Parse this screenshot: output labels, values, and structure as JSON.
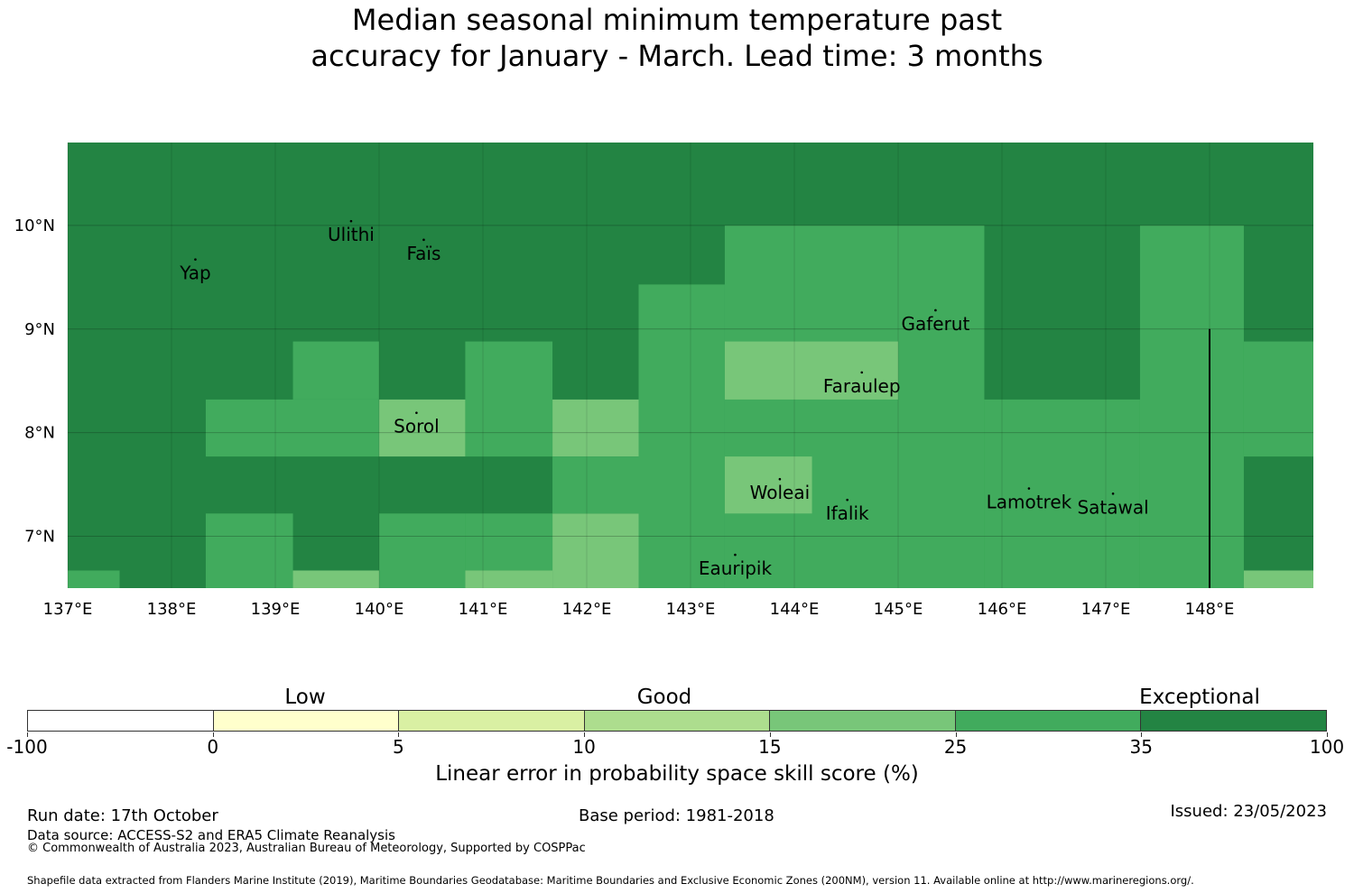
{
  "title": {
    "line1": "Median seasonal minimum temperature past",
    "line2": "accuracy for January - March. Lead time: 3 months"
  },
  "map": {
    "lon_range": [
      137,
      149
    ],
    "lat_range": [
      6.5,
      10.8
    ],
    "x_ticks": [
      {
        "value": 137,
        "label": "137°E"
      },
      {
        "value": 138,
        "label": "138°E"
      },
      {
        "value": 139,
        "label": "139°E"
      },
      {
        "value": 140,
        "label": "140°E"
      },
      {
        "value": 141,
        "label": "141°E"
      },
      {
        "value": 142,
        "label": "142°E"
      },
      {
        "value": 143,
        "label": "143°E"
      },
      {
        "value": 144,
        "label": "144°E"
      },
      {
        "value": 145,
        "label": "145°E"
      },
      {
        "value": 146,
        "label": "146°E"
      },
      {
        "value": 147,
        "label": "147°E"
      },
      {
        "value": 148,
        "label": "148°E"
      }
    ],
    "y_ticks": [
      {
        "value": 7,
        "label": "7°N"
      },
      {
        "value": 8,
        "label": "8°N"
      },
      {
        "value": 9,
        "label": "9°N"
      },
      {
        "value": 10,
        "label": "10°N"
      }
    ],
    "cells": [
      {
        "lon0": 137,
        "lon1": 149,
        "lat0": 6.5,
        "lat1": 10.8,
        "cat": "dark"
      },
      {
        "lon0": 145,
        "lon1": 145.83,
        "lat0": 6.5,
        "lat1": 10.0,
        "cat": "mid"
      },
      {
        "lon0": 143.33,
        "lon1": 145,
        "lat0": 6.5,
        "lat1": 10.0,
        "cat": "mid"
      },
      {
        "lon0": 142.5,
        "lon1": 143.33,
        "lat0": 6.5,
        "lat1": 9.43,
        "cat": "mid"
      },
      {
        "lon0": 145.83,
        "lon1": 147.33,
        "lat0": 6.5,
        "lat1": 8.32,
        "cat": "mid"
      },
      {
        "lon0": 147.33,
        "lon1": 148.33,
        "lat0": 6.5,
        "lat1": 10.0,
        "cat": "mid"
      },
      {
        "lon0": 148.33,
        "lon1": 149,
        "lat0": 7.77,
        "lat1": 8.88,
        "cat": "mid"
      },
      {
        "lon0": 148.33,
        "lon1": 149,
        "lat0": 6.5,
        "lat1": 6.67,
        "cat": "light"
      },
      {
        "lon0": 143.33,
        "lon1": 145,
        "lat0": 8.32,
        "lat1": 8.88,
        "cat": "light"
      },
      {
        "lon0": 143.33,
        "lon1": 144.17,
        "lat0": 7.22,
        "lat1": 7.77,
        "cat": "light"
      },
      {
        "lon0": 141.67,
        "lon1": 142.5,
        "lat0": 7.77,
        "lat1": 8.32,
        "cat": "light"
      },
      {
        "lon0": 141.67,
        "lon1": 142.5,
        "lat0": 6.5,
        "lat1": 7.22,
        "cat": "light"
      },
      {
        "lon0": 141.67,
        "lon1": 142.5,
        "lat0": 7.22,
        "lat1": 7.77,
        "cat": "mid"
      },
      {
        "lon0": 138.33,
        "lon1": 140,
        "lat0": 7.77,
        "lat1": 8.32,
        "cat": "mid"
      },
      {
        "lon0": 139.17,
        "lon1": 140,
        "lat0": 8.32,
        "lat1": 8.88,
        "cat": "mid"
      },
      {
        "lon0": 140,
        "lon1": 140.83,
        "lat0": 7.77,
        "lat1": 8.32,
        "cat": "light"
      },
      {
        "lon0": 140.83,
        "lon1": 141.67,
        "lat0": 7.77,
        "lat1": 8.88,
        "cat": "mid"
      },
      {
        "lon0": 138.33,
        "lon1": 139.17,
        "lat0": 6.5,
        "lat1": 7.22,
        "cat": "mid"
      },
      {
        "lon0": 139.17,
        "lon1": 140,
        "lat0": 6.5,
        "lat1": 6.67,
        "cat": "light"
      },
      {
        "lon0": 140,
        "lon1": 140.83,
        "lat0": 6.5,
        "lat1": 7.22,
        "cat": "mid"
      },
      {
        "lon0": 140.83,
        "lon1": 141.67,
        "lat0": 6.67,
        "lat1": 7.22,
        "cat": "mid"
      },
      {
        "lon0": 140.83,
        "lon1": 141.67,
        "lat0": 6.5,
        "lat1": 6.67,
        "cat": "light"
      },
      {
        "lon0": 137,
        "lon1": 137.5,
        "lat0": 6.5,
        "lat1": 6.67,
        "cat": "mid"
      }
    ],
    "places": [
      {
        "name": "Ulithi",
        "lon": 139.73,
        "lat": 9.85
      },
      {
        "name": "Faïs",
        "lon": 140.43,
        "lat": 9.67
      },
      {
        "name": "Yap",
        "lon": 138.23,
        "lat": 9.48
      },
      {
        "name": "Gaferut",
        "lon": 145.36,
        "lat": 8.99
      },
      {
        "name": "Faraulep",
        "lon": 144.65,
        "lat": 8.39
      },
      {
        "name": "Sorol",
        "lon": 140.36,
        "lat": 8.0
      },
      {
        "name": "Woleai",
        "lon": 143.86,
        "lat": 7.36
      },
      {
        "name": "Ifalik",
        "lon": 144.51,
        "lat": 7.16
      },
      {
        "name": "Lamotrek",
        "lon": 146.26,
        "lat": 7.27
      },
      {
        "name": "Satawal",
        "lon": 147.07,
        "lat": 7.22
      },
      {
        "name": "Eauripik",
        "lon": 143.43,
        "lat": 6.63
      }
    ],
    "boundary_line": {
      "lon": 148.0,
      "lat0": 6.5,
      "lat1": 9.0
    }
  },
  "colorbar": {
    "colors": [
      "#ffffff",
      "#ffffcc",
      "#d9f0a3",
      "#addd8e",
      "#78c679",
      "#41ab5d",
      "#238443"
    ],
    "tick_labels": [
      "-100",
      "0",
      "5",
      "10",
      "15",
      "25",
      "35",
      "100"
    ],
    "categories": [
      "Low",
      "Good",
      "Exceptional"
    ],
    "axis_label": "Linear error in probability space skill score (%)"
  },
  "map_colors": {
    "dark": "#238443",
    "mid": "#41ab5d",
    "light": "#78c679"
  },
  "footer": {
    "run_date": "Run date: 17th October",
    "base_period": "Base period: 1981-2018",
    "issued": "Issued: 23/05/2023",
    "data_source": "Data source: ACCESS-S2 and ERA5 Climate Reanalysis",
    "copyright": "© Commonwealth of Australia 2023, Australian Bureau of Meteorology, Supported by COSPPac",
    "shapefile": "Shapefile data extracted from Flanders Marine Institute (2019), Maritime Boundaries Geodatabase: Maritime Boundaries and Exclusive Economic Zones (200NM), version 11. Available online at http://www.marineregions.org/."
  }
}
